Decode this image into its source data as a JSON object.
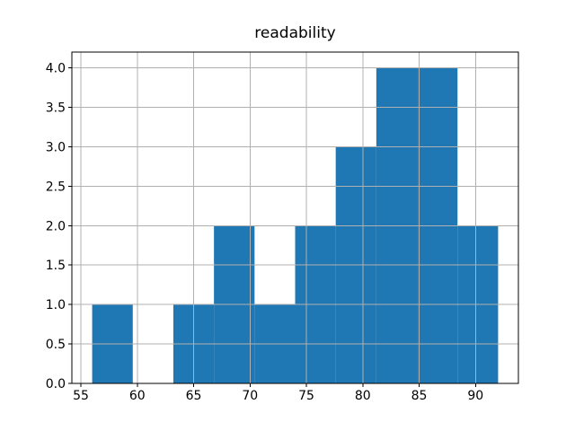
{
  "figure": {
    "background": "#ffffff"
  },
  "chart_data": {
    "type": "bar",
    "subtype": "histogram",
    "title": "readability",
    "xlabel": "",
    "ylabel": "",
    "bin_edges": [
      56,
      59.6,
      63.2,
      66.8,
      70.4,
      74,
      77.6,
      81.2,
      84.8,
      88.4,
      92
    ],
    "counts": [
      1,
      0,
      1,
      2,
      1,
      2,
      3,
      4,
      4,
      2
    ],
    "xlim": [
      54.2,
      93.8
    ],
    "ylim": [
      0,
      4.2
    ],
    "xticks": [
      55,
      60,
      65,
      70,
      75,
      80,
      85,
      90
    ],
    "xtick_labels": [
      "55",
      "60",
      "65",
      "70",
      "75",
      "80",
      "85",
      "90"
    ],
    "yticks": [
      0,
      0.5,
      1,
      1.5,
      2,
      2.5,
      3,
      3.5,
      4
    ],
    "ytick_labels": [
      "0.0",
      "0.5",
      "1.0",
      "1.5",
      "2.0",
      "2.5",
      "3.0",
      "3.5",
      "4.0"
    ],
    "grid": true,
    "grid_above_bars": true,
    "legend": "none",
    "bar_color": "#1f77b4",
    "grid_color": "#b0b0b0",
    "axis_color": "#000000",
    "text_color": "#000000"
  }
}
